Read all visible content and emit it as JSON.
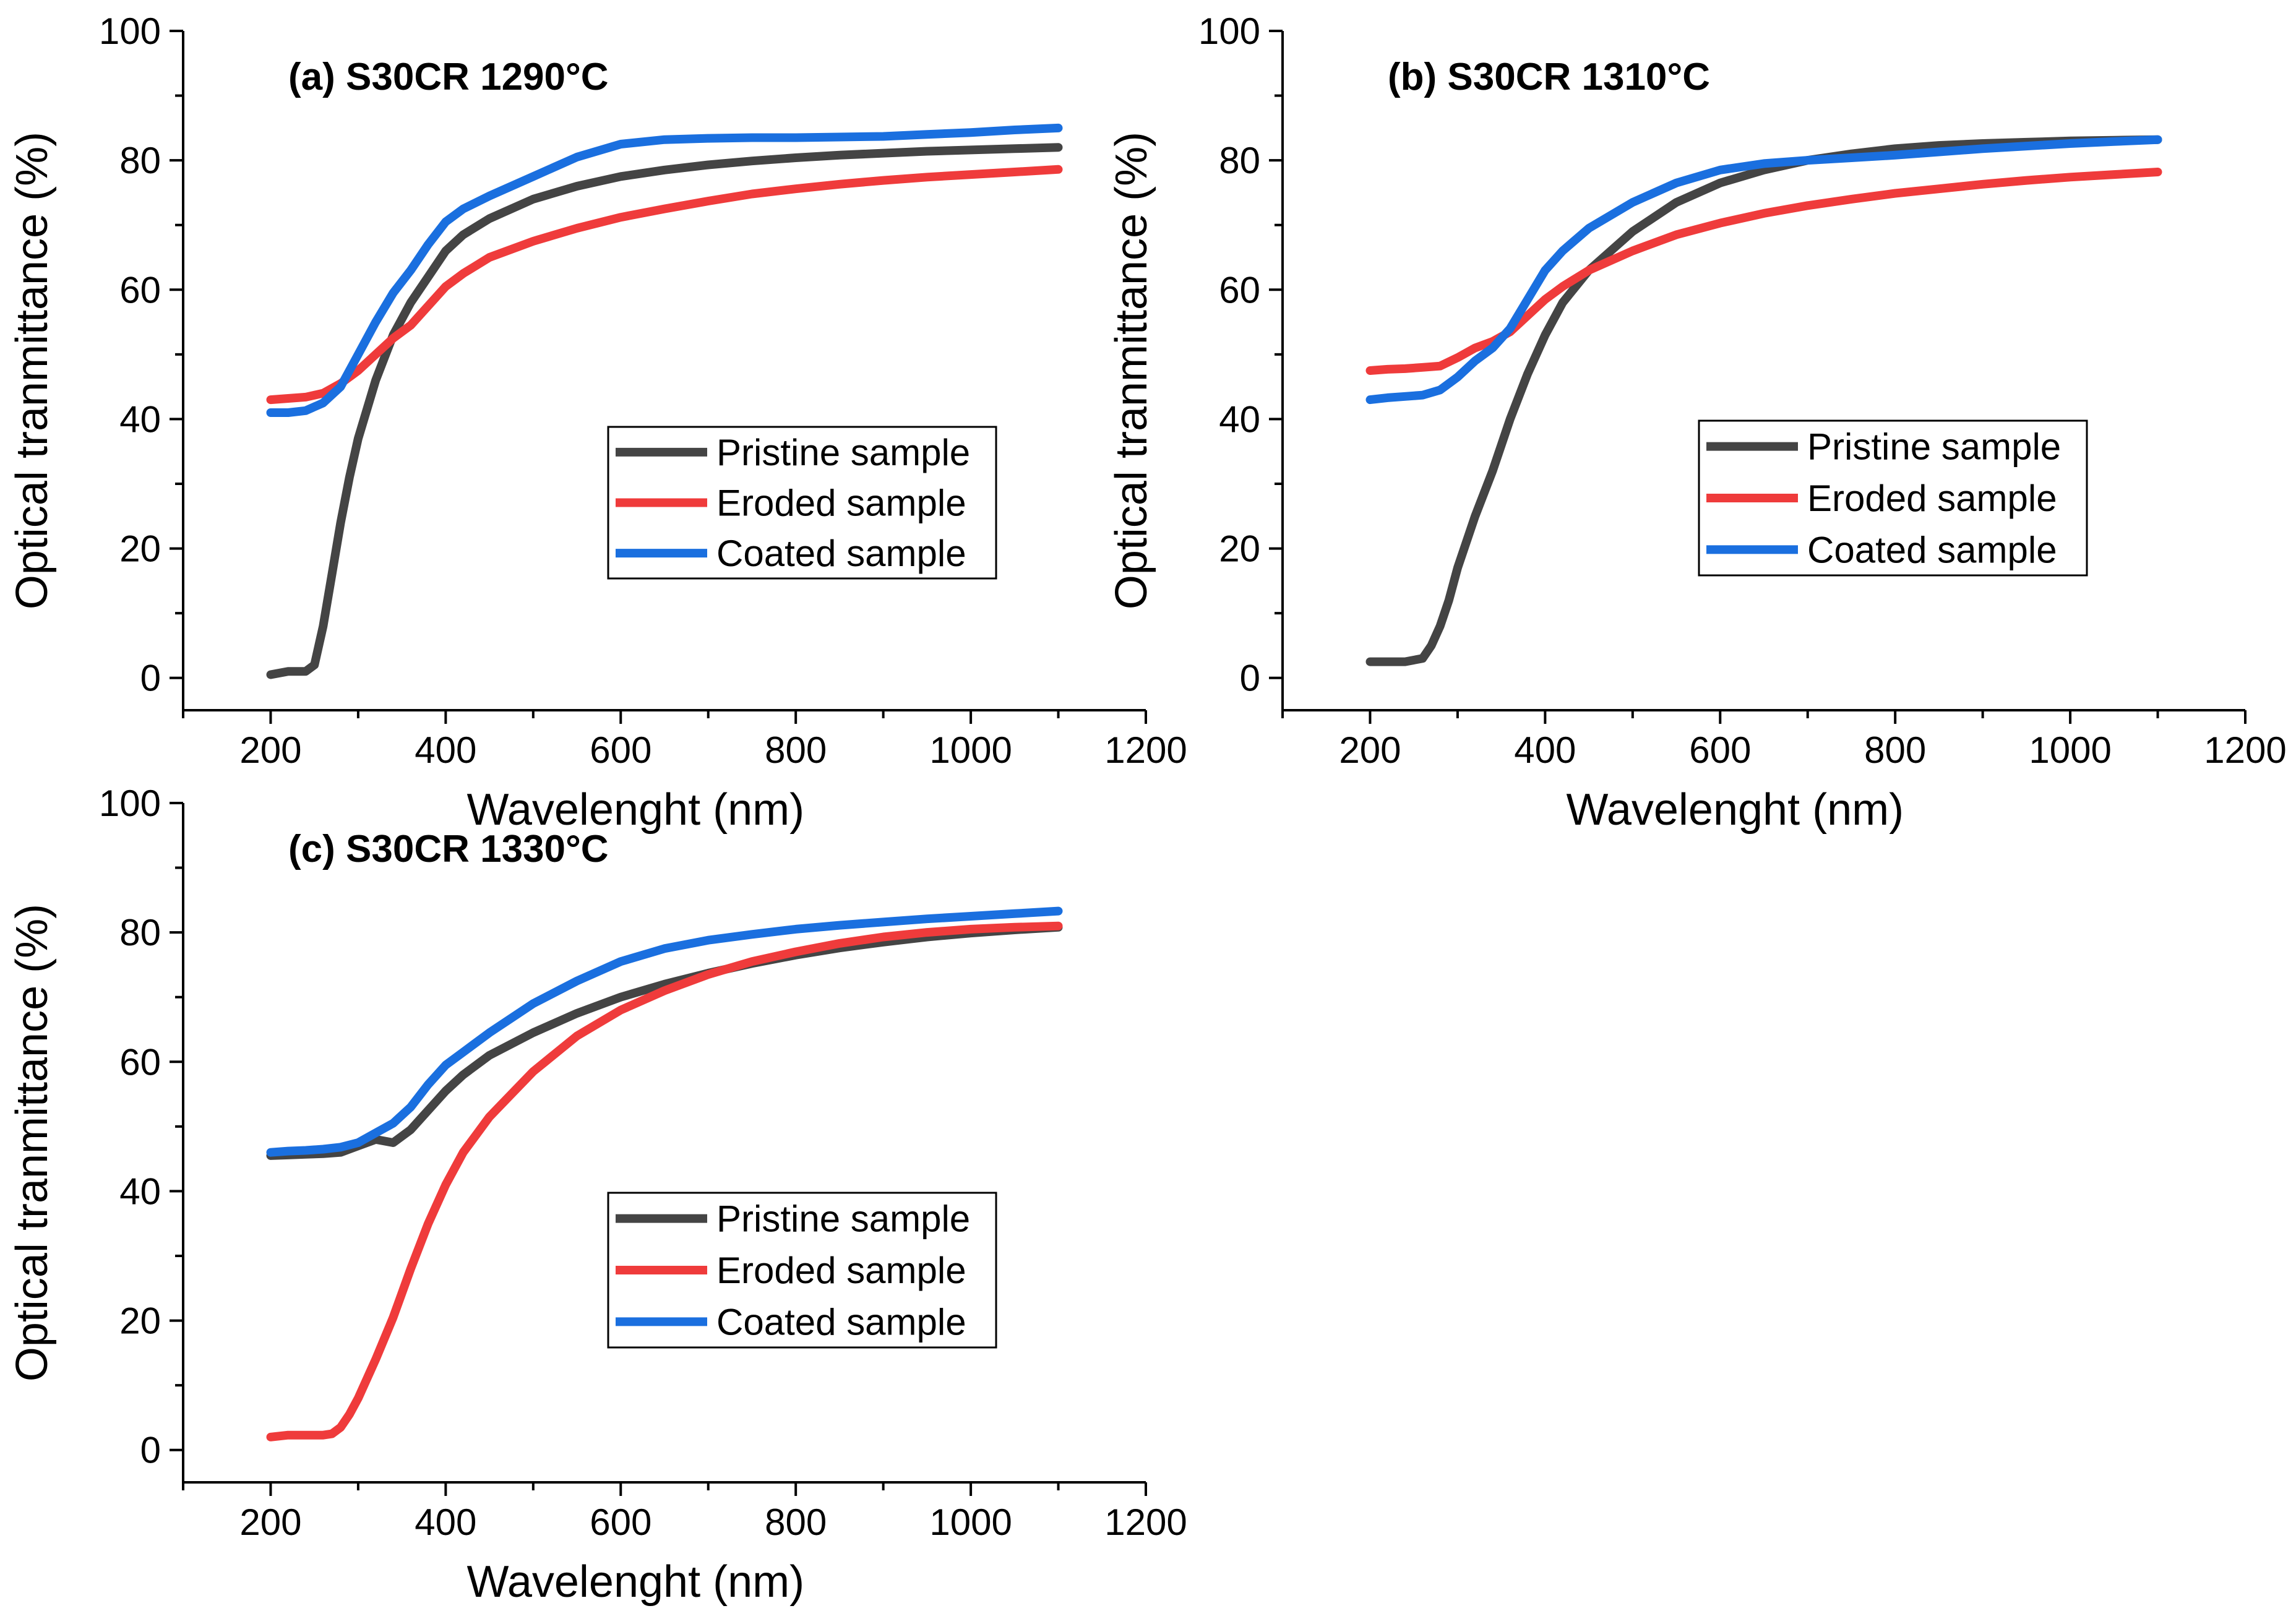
{
  "colors": {
    "pristine": "#444444",
    "eroded": "#ef3b3b",
    "coated": "#1a6fdf"
  },
  "chart_data": [
    {
      "type": "line",
      "title": "(a) S30CR 1290°C",
      "xlabel": "Wavelenght (nm)",
      "ylabel": "Optical tranmittance (%)",
      "xlim": [
        100,
        1200
      ],
      "ylim": [
        -5,
        100
      ],
      "xticks": [
        200,
        400,
        600,
        800,
        1000,
        1200
      ],
      "yticks": [
        0,
        20,
        40,
        60,
        80,
        100
      ],
      "legend": {
        "position": "center-right"
      },
      "series": [
        {
          "name": "Pristine sample",
          "color_key": "pristine",
          "x": [
            200,
            220,
            240,
            250,
            260,
            270,
            280,
            290,
            300,
            320,
            340,
            360,
            380,
            400,
            420,
            450,
            500,
            550,
            600,
            650,
            700,
            750,
            800,
            850,
            900,
            950,
            1000,
            1050,
            1100
          ],
          "y": [
            0.5,
            1,
            1,
            2,
            8,
            16,
            24,
            31,
            37,
            46,
            53,
            58,
            62,
            66,
            68.5,
            71,
            74,
            76,
            77.5,
            78.5,
            79.3,
            79.9,
            80.4,
            80.8,
            81.1,
            81.4,
            81.6,
            81.8,
            82
          ]
        },
        {
          "name": "Eroded sample",
          "color_key": "eroded",
          "x": [
            200,
            220,
            240,
            260,
            280,
            300,
            320,
            340,
            360,
            380,
            400,
            420,
            450,
            500,
            550,
            600,
            650,
            700,
            750,
            800,
            850,
            900,
            950,
            1000,
            1050,
            1100
          ],
          "y": [
            43,
            43.2,
            43.4,
            44,
            45.5,
            47.5,
            50,
            52.5,
            54.5,
            57.5,
            60.5,
            62.5,
            65,
            67.5,
            69.5,
            71.2,
            72.5,
            73.7,
            74.8,
            75.6,
            76.3,
            76.9,
            77.4,
            77.8,
            78.2,
            78.6
          ]
        },
        {
          "name": "Coated sample",
          "color_key": "coated",
          "x": [
            200,
            220,
            240,
            260,
            280,
            300,
            320,
            340,
            360,
            380,
            400,
            420,
            450,
            500,
            550,
            600,
            650,
            700,
            750,
            800,
            850,
            900,
            950,
            1000,
            1050,
            1100
          ],
          "y": [
            41,
            41,
            41.3,
            42.5,
            45,
            50,
            55,
            59.5,
            63,
            67,
            70.5,
            72.5,
            74.5,
            77.5,
            80.5,
            82.5,
            83.2,
            83.4,
            83.5,
            83.5,
            83.6,
            83.7,
            84,
            84.3,
            84.7,
            85
          ]
        }
      ]
    },
    {
      "type": "line",
      "title": "(b) S30CR 1310°C",
      "xlabel": "Wavelenght (nm)",
      "ylabel": "Optical tranmittance (%)",
      "xlim": [
        100,
        1200
      ],
      "ylim": [
        -5,
        100
      ],
      "xticks": [
        200,
        400,
        600,
        800,
        1000,
        1200
      ],
      "yticks": [
        0,
        20,
        40,
        60,
        80,
        100
      ],
      "legend": {
        "position": "center-right"
      },
      "series": [
        {
          "name": "Pristine sample",
          "color_key": "pristine",
          "x": [
            200,
            220,
            240,
            260,
            270,
            280,
            290,
            300,
            320,
            340,
            360,
            380,
            400,
            420,
            450,
            500,
            550,
            600,
            650,
            700,
            750,
            800,
            850,
            900,
            950,
            1000,
            1050,
            1100
          ],
          "y": [
            2.5,
            2.5,
            2.5,
            3,
            5,
            8,
            12,
            17,
            25,
            32,
            40,
            47,
            53,
            58,
            63,
            69,
            73.5,
            76.5,
            78.5,
            80,
            81,
            81.8,
            82.3,
            82.6,
            82.8,
            83,
            83.1,
            83.2
          ]
        },
        {
          "name": "Eroded sample",
          "color_key": "eroded",
          "x": [
            200,
            220,
            240,
            260,
            280,
            300,
            320,
            340,
            360,
            380,
            400,
            420,
            450,
            500,
            550,
            600,
            650,
            700,
            750,
            800,
            850,
            900,
            950,
            1000,
            1050,
            1100
          ],
          "y": [
            47.5,
            47.7,
            47.8,
            48,
            48.2,
            49.5,
            51,
            52,
            53.5,
            56,
            58.5,
            60.5,
            63,
            66,
            68.5,
            70.3,
            71.8,
            73,
            74,
            74.9,
            75.6,
            76.3,
            76.9,
            77.4,
            77.8,
            78.2
          ]
        },
        {
          "name": "Coated sample",
          "color_key": "coated",
          "x": [
            200,
            220,
            240,
            260,
            280,
            300,
            320,
            340,
            360,
            380,
            400,
            420,
            450,
            500,
            550,
            600,
            650,
            700,
            750,
            800,
            850,
            900,
            950,
            1000,
            1050,
            1100
          ],
          "y": [
            43,
            43.3,
            43.5,
            43.7,
            44.5,
            46.5,
            49,
            51,
            54,
            58.5,
            63,
            66,
            69.5,
            73.5,
            76.5,
            78.5,
            79.5,
            80,
            80.4,
            80.8,
            81.3,
            81.8,
            82.2,
            82.6,
            82.9,
            83.2
          ]
        }
      ]
    },
    {
      "type": "line",
      "title": "(c) S30CR 1330°C",
      "xlabel": "Wavelenght (nm)",
      "ylabel": "Optical tranmittance (%)",
      "xlim": [
        100,
        1200
      ],
      "ylim": [
        -5,
        100
      ],
      "xticks": [
        200,
        400,
        600,
        800,
        1000,
        1200
      ],
      "yticks": [
        0,
        20,
        40,
        60,
        80,
        100
      ],
      "legend": {
        "position": "lower-right"
      },
      "series": [
        {
          "name": "Pristine sample",
          "color_key": "pristine",
          "x": [
            200,
            220,
            240,
            260,
            280,
            300,
            320,
            340,
            360,
            380,
            400,
            420,
            450,
            500,
            550,
            600,
            650,
            700,
            750,
            800,
            850,
            900,
            950,
            1000,
            1050,
            1100
          ],
          "y": [
            45.5,
            45.6,
            45.7,
            45.8,
            46,
            47,
            48,
            47.5,
            49.5,
            52.5,
            55.5,
            58,
            61,
            64.5,
            67.5,
            70,
            72,
            73.7,
            75.2,
            76.5,
            77.6,
            78.5,
            79.3,
            79.9,
            80.4,
            80.8
          ]
        },
        {
          "name": "Eroded sample",
          "color_key": "eroded",
          "x": [
            200,
            220,
            240,
            260,
            270,
            280,
            290,
            300,
            320,
            340,
            360,
            380,
            400,
            420,
            450,
            500,
            550,
            600,
            650,
            700,
            750,
            800,
            850,
            900,
            950,
            1000,
            1050,
            1100
          ],
          "y": [
            2,
            2.3,
            2.3,
            2.3,
            2.5,
            3.5,
            5.5,
            8,
            14,
            20.5,
            28,
            35,
            41,
            46,
            51.5,
            58.5,
            64,
            68,
            71,
            73.5,
            75.5,
            77,
            78.3,
            79.3,
            80,
            80.5,
            80.8,
            81
          ]
        },
        {
          "name": "Coated sample",
          "color_key": "coated",
          "x": [
            200,
            220,
            240,
            260,
            280,
            300,
            320,
            340,
            360,
            380,
            400,
            420,
            450,
            500,
            550,
            600,
            650,
            700,
            750,
            800,
            850,
            900,
            950,
            1000,
            1050,
            1100
          ],
          "y": [
            46,
            46.2,
            46.3,
            46.5,
            46.8,
            47.5,
            49,
            50.5,
            53,
            56.5,
            59.5,
            61.5,
            64.5,
            69,
            72.5,
            75.5,
            77.5,
            78.8,
            79.7,
            80.5,
            81.1,
            81.6,
            82.1,
            82.5,
            82.9,
            83.3
          ]
        }
      ]
    }
  ]
}
